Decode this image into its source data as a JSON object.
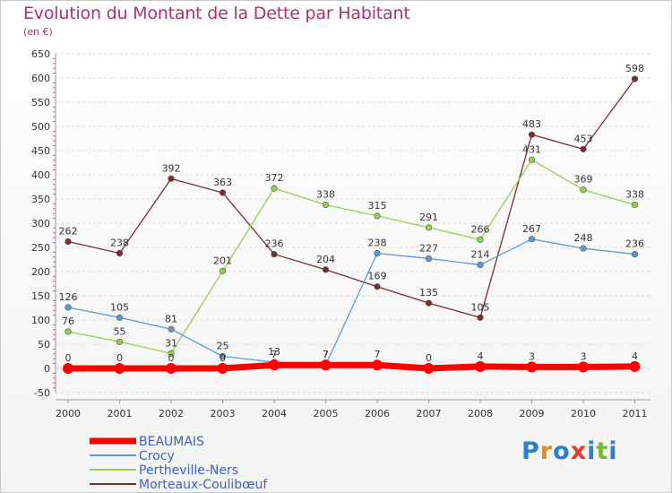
{
  "header": {
    "title": "Evolution du Montant de la Dette par Habitant",
    "subtitle": "(en €)"
  },
  "logo": {
    "text": "Proxiti",
    "letter_colors": [
      "#2d7fc9",
      "#e8892a",
      "#2d7fc9",
      "#e8392a",
      "#2d7fc9",
      "#7ab836",
      "#2d7fc9"
    ]
  },
  "chart_data": {
    "type": "line",
    "title": "Evolution du Montant de la Dette par Habitant",
    "subtitle": "(en €)",
    "xlabel": "",
    "ylabel": "",
    "categories": [
      "2000",
      "2001",
      "2002",
      "2003",
      "2004",
      "2005",
      "2006",
      "2007",
      "2008",
      "2009",
      "2010",
      "2011"
    ],
    "ylim": [
      -50,
      650
    ],
    "yticks": [
      "-50",
      "0",
      "50",
      "100",
      "150",
      "200",
      "250",
      "300",
      "350",
      "400",
      "450",
      "500",
      "550",
      "600",
      "650"
    ],
    "grid": "horizontal",
    "legend_position": "bottom-left",
    "series": [
      {
        "name": "BEAUMAIS",
        "color": "#ff0000",
        "values": [
          0,
          0,
          0,
          0,
          7,
          7,
          7,
          0,
          4,
          3,
          3,
          4
        ],
        "labels": [
          "0",
          "0",
          "0",
          "0",
          "7",
          "7",
          "7",
          "0",
          "4",
          "3",
          "3",
          "4"
        ]
      },
      {
        "name": "Crocy",
        "color": "#5b9bd5",
        "values": [
          126,
          105,
          81,
          25,
          13,
          7,
          238,
          227,
          214,
          267,
          248,
          236
        ],
        "labels": [
          "126",
          "105",
          "81",
          "25",
          "13",
          "7",
          "238",
          "227",
          "214",
          "267",
          "248",
          "236"
        ]
      },
      {
        "name": "Pertheville-Ners",
        "color": "#92d050",
        "values": [
          76,
          55,
          31,
          201,
          372,
          338,
          315,
          291,
          266,
          431,
          369,
          338
        ],
        "labels": [
          "76",
          "55",
          "31",
          "201",
          "372",
          "338",
          "315",
          "291",
          "266",
          "431",
          "369",
          "338"
        ]
      },
      {
        "name": "Morteaux-Coulibœuf",
        "color": "#7b2c2c",
        "values": [
          262,
          238,
          392,
          363,
          236,
          204,
          169,
          135,
          105,
          483,
          453,
          598
        ],
        "labels": [
          "262",
          "238",
          "392",
          "363",
          "236",
          "204",
          "169",
          "135",
          "105",
          "483",
          "453",
          "598"
        ]
      }
    ]
  }
}
